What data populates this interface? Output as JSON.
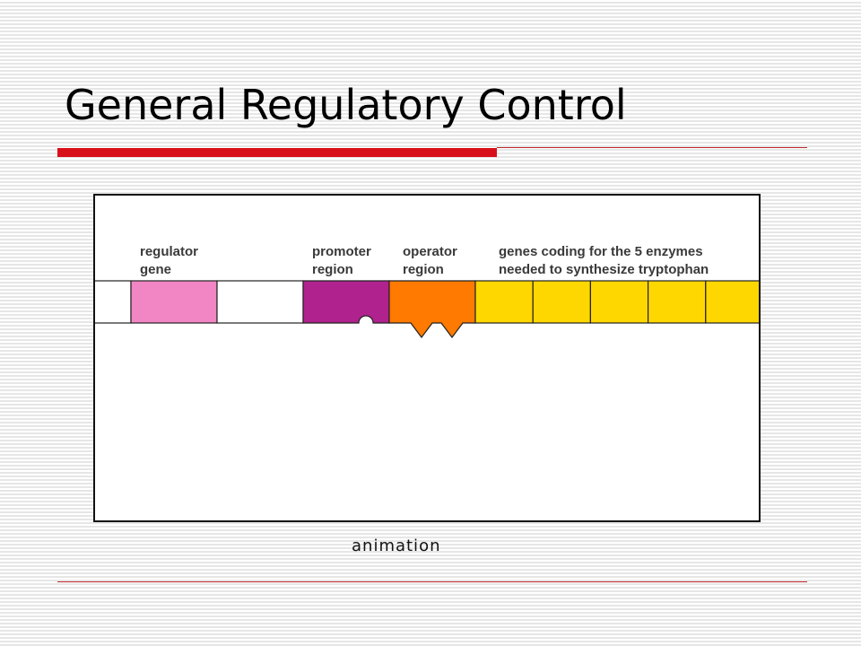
{
  "slide": {
    "title": "General Regulatory Control",
    "caption": "animation"
  },
  "diagram": {
    "labels": {
      "regulator_line1": "regulator",
      "regulator_line2": "gene",
      "promoter_line1": "promoter",
      "promoter_line2": "region",
      "operator_line1": "operator",
      "operator_line2": "region",
      "genes_line1": "genes coding for the 5 enzymes",
      "genes_line2": "needed to synthesize tryptophan"
    },
    "enzyme_gene_count": 5,
    "colors": {
      "regulator_gene": "#f286c4",
      "promoter_region": "#b0228e",
      "operator_region": "#ff7a00",
      "enzyme_genes": "#ffd700",
      "title_accent": "#d8101a"
    }
  }
}
